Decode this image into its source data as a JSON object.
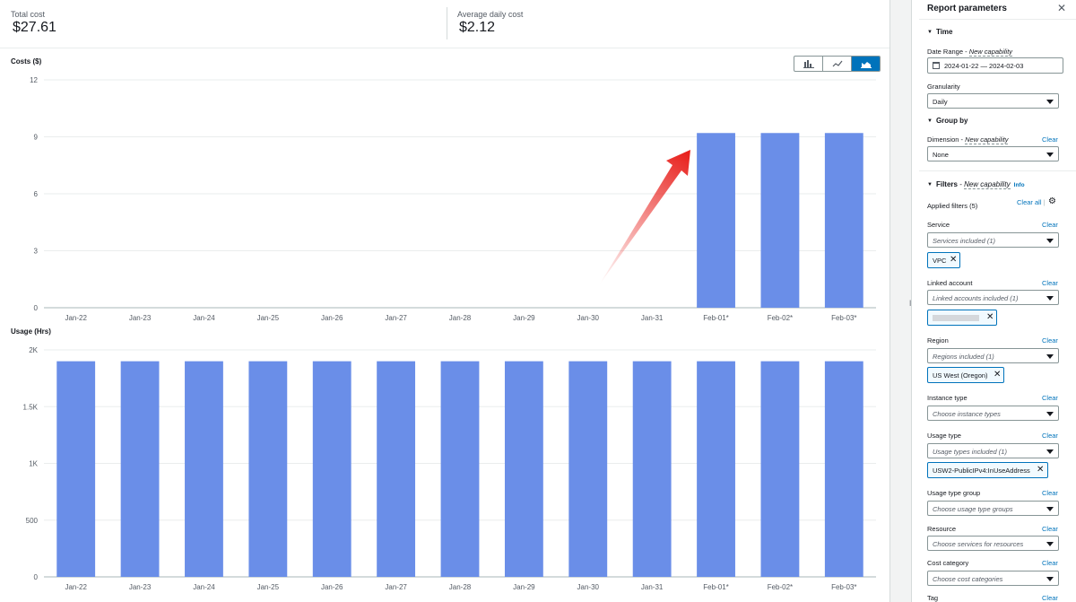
{
  "summary": {
    "total_cost_label": "Total cost",
    "total_cost_value": "$27.61",
    "avg_daily_label": "Average daily cost",
    "avg_daily_value": "$2.12"
  },
  "chart_toggle": [
    "bar-chart-icon",
    "line-chart-icon",
    "stacked-bar-chart-icon"
  ],
  "colors": {
    "bar": "#6a8ee8",
    "accent": "#0073bb",
    "arrow": "#e8201c"
  },
  "chart_data": [
    {
      "type": "bar",
      "title": "Costs ($)",
      "categories": [
        "Jan-22",
        "Jan-23",
        "Jan-24",
        "Jan-25",
        "Jan-26",
        "Jan-27",
        "Jan-28",
        "Jan-29",
        "Jan-30",
        "Jan-31",
        "Feb-01*",
        "Feb-02*",
        "Feb-03*"
      ],
      "values": [
        0,
        0,
        0,
        0,
        0,
        0,
        0,
        0,
        0,
        0,
        9.2,
        9.2,
        9.2
      ],
      "ylim": [
        0,
        12
      ],
      "yticks": [
        0,
        3,
        6,
        9,
        12
      ],
      "ytick_labels": [
        "0",
        "3",
        "6",
        "9",
        "12"
      ],
      "grid": true
    },
    {
      "type": "bar",
      "title": "Usage (Hrs)",
      "categories": [
        "Jan-22",
        "Jan-23",
        "Jan-24",
        "Jan-25",
        "Jan-26",
        "Jan-27",
        "Jan-28",
        "Jan-29",
        "Jan-30",
        "Jan-31",
        "Feb-01*",
        "Feb-02*",
        "Feb-03*"
      ],
      "values": [
        1900,
        1900,
        1900,
        1900,
        1900,
        1900,
        1900,
        1900,
        1900,
        1900,
        1900,
        1900,
        1900
      ],
      "ylim": [
        0,
        2000
      ],
      "yticks": [
        0,
        500,
        1000,
        1500,
        2000
      ],
      "ytick_labels": [
        "0",
        "500",
        "1K",
        "1.5K",
        "2K"
      ],
      "grid": true
    }
  ],
  "panel": {
    "title": "Report parameters",
    "time_heading": "Time",
    "date_range_label": "Date Range",
    "new_capability": "New capability",
    "date_range_value": "2024-01-22 — 2024-02-03",
    "granularity_label": "Granularity",
    "granularity_value": "Daily",
    "group_by_heading": "Group by",
    "dimension_label": "Dimension",
    "dimension_value": "None",
    "filters_heading": "Filters",
    "info_link": "Info",
    "applied_filters": "Applied filters (5)",
    "clear_all": "Clear all",
    "clear": "Clear",
    "service_label": "Service",
    "service_value": "Services included (1)",
    "service_chip": "VPC",
    "linked_account_label": "Linked account",
    "linked_account_value": "Linked accounts included (1)",
    "region_label": "Region",
    "region_value": "Regions included (1)",
    "region_chip": "US West (Oregon)",
    "instance_type_label": "Instance type",
    "instance_type_placeholder": "Choose instance types",
    "usage_type_label": "Usage type",
    "usage_type_value": "Usage types included (1)",
    "usage_type_chip": "USW2-PublicIPv4:InUseAddress",
    "usage_type_group_label": "Usage type group",
    "usage_type_group_placeholder": "Choose usage type groups",
    "resource_label": "Resource",
    "resource_placeholder": "Choose services for resources",
    "cost_category_label": "Cost category",
    "cost_category_placeholder": "Choose cost categories",
    "tag_label": "Tag"
  }
}
